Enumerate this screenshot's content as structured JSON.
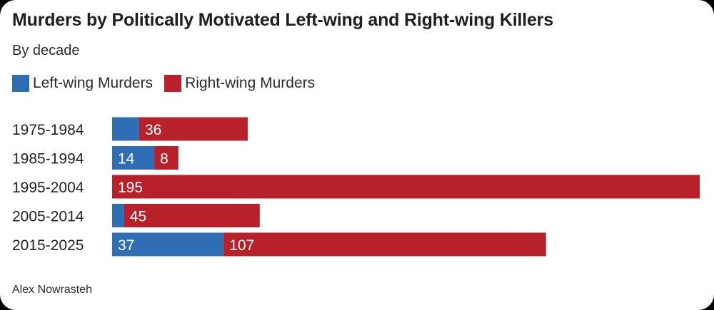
{
  "colors": {
    "left": "#2f6db5",
    "right": "#b8202a"
  },
  "chart_data": {
    "type": "bar",
    "orientation": "horizontal",
    "stacked": true,
    "title": "Murders by Politically Motivated Left-wing and Right-wing Killers",
    "subtitle": "By decade",
    "source": "Alex Nowrasteh",
    "legend_position": "top-left",
    "grid": false,
    "categories": [
      "1975-1984",
      "1985-1994",
      "1995-2004",
      "2005-2014",
      "2015-2025"
    ],
    "series": [
      {
        "name": "Left-wing Murders",
        "values": [
          9,
          14,
          0,
          4,
          37
        ],
        "labels": [
          "",
          "14",
          "",
          "",
          "37"
        ]
      },
      {
        "name": "Right-wing Murders",
        "values": [
          36,
          8,
          195,
          45,
          107
        ],
        "labels": [
          "36",
          "8",
          "195",
          "45",
          "107"
        ]
      }
    ],
    "xlim": [
      0,
      195
    ]
  }
}
